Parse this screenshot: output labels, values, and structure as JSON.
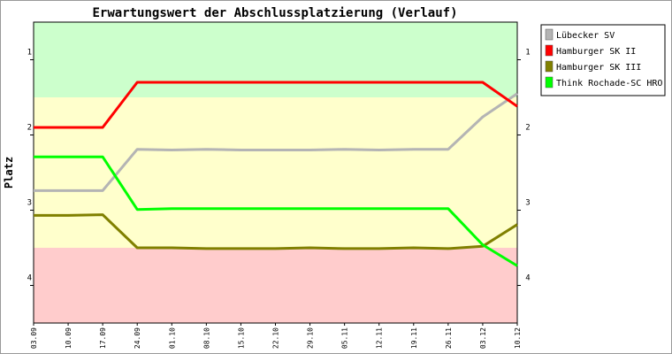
{
  "chart_data": {
    "type": "line",
    "title": "Erwartungswert der Abschlussplatzierung (Verlauf)",
    "ylabel": "Platz",
    "xlabel": "",
    "ylim": [
      4.5,
      0.5
    ],
    "y_reversed": true,
    "yticks": [
      1,
      2,
      3,
      4
    ],
    "categories": [
      "03.09",
      "10.09",
      "17.09",
      "24.09",
      "01.10",
      "08.10",
      "15.10",
      "22.10",
      "29.10",
      "05.11",
      "12.11",
      "19.11",
      "26.11",
      "03.12",
      "10.12"
    ],
    "bands": [
      {
        "from": 0.5,
        "to": 1.5,
        "color": "#ccffcc"
      },
      {
        "from": 1.5,
        "to": 3.5,
        "color": "#ffffcc"
      },
      {
        "from": 3.5,
        "to": 4.5,
        "color": "#ffcccc"
      }
    ],
    "legend_position": "right",
    "series": [
      {
        "name": "Lübecker SV",
        "color": "#b4b4b4",
        "values": [
          2.74,
          2.74,
          2.74,
          2.19,
          2.2,
          2.19,
          2.2,
          2.2,
          2.2,
          2.19,
          2.2,
          2.19,
          2.19,
          1.76,
          1.45
        ]
      },
      {
        "name": "Hamburger SK II",
        "color": "#ff0000",
        "values": [
          1.9,
          1.9,
          1.9,
          1.3,
          1.3,
          1.3,
          1.3,
          1.3,
          1.3,
          1.3,
          1.3,
          1.3,
          1.3,
          1.3,
          1.62
        ]
      },
      {
        "name": "Hamburger SK III",
        "color": "#808000",
        "values": [
          3.07,
          3.07,
          3.06,
          3.5,
          3.5,
          3.51,
          3.51,
          3.51,
          3.5,
          3.51,
          3.51,
          3.5,
          3.51,
          3.48,
          3.19
        ]
      },
      {
        "name": "Think Rochade-SC HRO",
        "color": "#00ff00",
        "values": [
          2.29,
          2.29,
          2.29,
          2.99,
          2.98,
          2.98,
          2.98,
          2.98,
          2.98,
          2.98,
          2.98,
          2.98,
          2.98,
          3.46,
          3.74
        ]
      }
    ]
  }
}
